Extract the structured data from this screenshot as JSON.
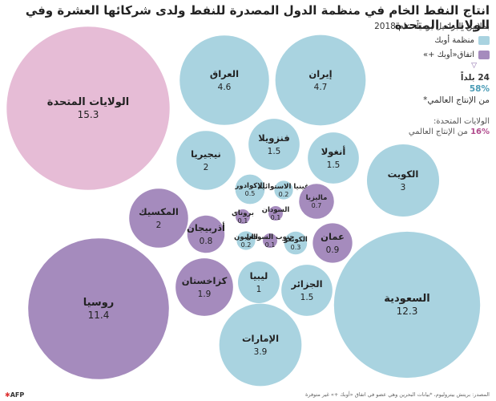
{
  "header": {
    "title": "انتاج النفط الخام في منظمة الدول المصدرة للنفط ولدى شركائها العشرة وفي الولايات المتحدة",
    "subtitle": "بملايين البراميل يومياً، عام 2018"
  },
  "legend": {
    "opec_label": "منظمة أوبك",
    "opec_color": "#a9d3e0",
    "partners_label": "اتفاق«أوبك +»",
    "partners_color": "#a58bbd",
    "arrow": "▽",
    "countries_count": "24 بلداً",
    "world_share_pct": "58%",
    "world_share_label": "من الإنتاج العالمي*",
    "usa_label": "الولايات المتحدة:",
    "usa_pct": "16%",
    "usa_share_label": "من الإنتاج العالمي",
    "usa_color": "#e6bcd6"
  },
  "chart_data": {
    "type": "bubble",
    "unit": "ملايين البراميل يومياً",
    "series": [
      {
        "name": "منظمة أوبك",
        "color": "#a9d3e0"
      },
      {
        "name": "اتفاق«أوبك +»",
        "color": "#a58bbd"
      },
      {
        "name": "الولايات المتحدة",
        "color": "#e6bcd6"
      }
    ],
    "points": [
      {
        "country": "الولايات المتحدة",
        "value": 15.3,
        "group": "usa"
      },
      {
        "country": "روسيا",
        "value": 11.4,
        "group": "partners"
      },
      {
        "country": "السعودية",
        "value": 12.3,
        "group": "opec"
      },
      {
        "country": "العراق",
        "value": 4.6,
        "group": "opec"
      },
      {
        "country": "إيران",
        "value": 4.7,
        "group": "opec"
      },
      {
        "country": "الإمارات",
        "value": 3.9,
        "group": "opec"
      },
      {
        "country": "الكويت",
        "value": 3,
        "group": "opec"
      },
      {
        "country": "نيجيريا",
        "value": 2,
        "group": "opec"
      },
      {
        "country": "فنزويلا",
        "value": 1.5,
        "group": "opec"
      },
      {
        "country": "أنغولا",
        "value": 1.5,
        "group": "opec"
      },
      {
        "country": "الجزائر",
        "value": 1.5,
        "group": "opec"
      },
      {
        "country": "ليبيا",
        "value": 1,
        "group": "opec"
      },
      {
        "country": "الإكوادور",
        "value": 0.5,
        "group": "opec"
      },
      {
        "country": "الكونغو",
        "value": 0.3,
        "group": "opec"
      },
      {
        "country": "الغابون",
        "value": 0.2,
        "group": "opec"
      },
      {
        "country": "غينيا الاستوائية",
        "value": 0.2,
        "group": "opec"
      },
      {
        "country": "المكسيك",
        "value": 2,
        "group": "partners"
      },
      {
        "country": "كزاخستان",
        "value": 1.9,
        "group": "partners"
      },
      {
        "country": "أذربيجان",
        "value": 0.8,
        "group": "partners"
      },
      {
        "country": "ماليزيا",
        "value": 0.7,
        "group": "partners"
      },
      {
        "country": "عمان",
        "value": 0.9,
        "group": "partners"
      },
      {
        "country": "بروناي",
        "value": 0.1,
        "group": "partners"
      },
      {
        "country": "السودان",
        "value": 0.1,
        "group": "partners"
      },
      {
        "country": "جنوب السودان",
        "value": 0.1,
        "group": "partners"
      }
    ]
  },
  "footer": {
    "source": "المصدر: بريتش بيتروليوم، *بيانات البحرين وهي عضو في اتفاق «أوبك +» غير متوفرة",
    "agency": "AFP"
  }
}
